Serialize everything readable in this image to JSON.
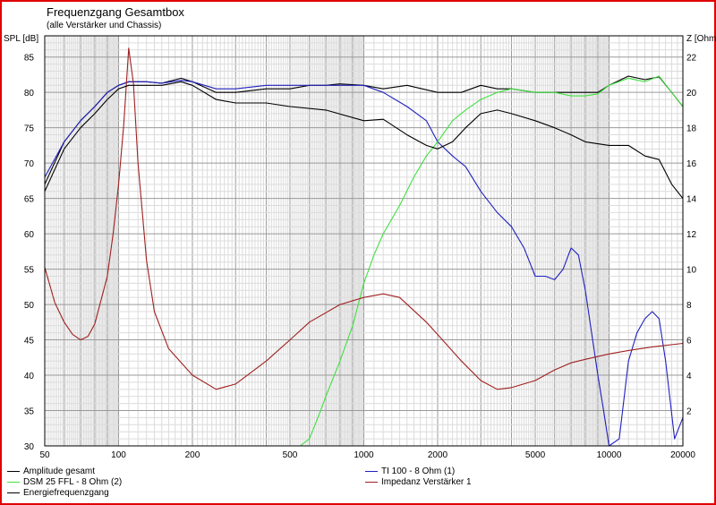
{
  "window": {
    "frame_color": "#e00000"
  },
  "chart_data": {
    "type": "line",
    "title": "Frequenzgang Gesamtbox",
    "subtitle": "(alle Verstärker und Chassis)",
    "xlabel": "",
    "ylabel": "SPL [dB]",
    "ylabel_right": "Z [Ohm]",
    "x_scale": "log",
    "xlim": [
      50,
      20000
    ],
    "ylim": [
      30,
      88
    ],
    "ylim_right": [
      0,
      23.2
    ],
    "grid": true,
    "x_ticks": [
      50,
      100,
      200,
      500,
      1000,
      2000,
      5000,
      10000,
      20000
    ],
    "x_tick_labels": [
      "50",
      "100",
      "200",
      "500",
      "1000",
      "2000",
      "5000",
      "10000",
      "20000"
    ],
    "y_ticks": [
      30,
      35,
      40,
      45,
      50,
      55,
      60,
      65,
      70,
      75,
      80,
      85
    ],
    "y_tick_labels": [
      "30",
      "35",
      "40",
      "45",
      "50",
      "55",
      "60",
      "65",
      "70",
      "75",
      "80",
      "85"
    ],
    "y_ticks_right": [
      2,
      4,
      6,
      8,
      10,
      12,
      14,
      16,
      18,
      20,
      22
    ],
    "y_tick_labels_right": [
      "2",
      "4",
      "6",
      "8",
      "10",
      "12",
      "14",
      "16",
      "18",
      "20",
      "22"
    ],
    "legend_position": "bottom",
    "series": [
      {
        "name": "Amplitude gesamt",
        "color": "#000000",
        "axis": "left",
        "points": [
          [
            50,
            67
          ],
          [
            60,
            73
          ],
          [
            70,
            76
          ],
          [
            80,
            78
          ],
          [
            90,
            80
          ],
          [
            100,
            81
          ],
          [
            110,
            81.5
          ],
          [
            130,
            81.5
          ],
          [
            150,
            81.3
          ],
          [
            180,
            82
          ],
          [
            200,
            81.5
          ],
          [
            250,
            80
          ],
          [
            300,
            80
          ],
          [
            400,
            80.5
          ],
          [
            500,
            80.5
          ],
          [
            600,
            81
          ],
          [
            700,
            81
          ],
          [
            800,
            81.2
          ],
          [
            1000,
            81
          ],
          [
            1200,
            80.5
          ],
          [
            1500,
            81
          ],
          [
            2000,
            80
          ],
          [
            2500,
            80
          ],
          [
            3000,
            81
          ],
          [
            3500,
            80.5
          ],
          [
            4000,
            80.5
          ],
          [
            5000,
            80
          ],
          [
            6000,
            80
          ],
          [
            7000,
            80
          ],
          [
            8000,
            80
          ],
          [
            9000,
            80
          ],
          [
            10000,
            81
          ],
          [
            12000,
            82.3
          ],
          [
            14000,
            81.8
          ],
          [
            16000,
            82.2
          ],
          [
            18000,
            80
          ],
          [
            20000,
            78
          ]
        ]
      },
      {
        "name": "TI 100 - 8 Ohm (1)",
        "color": "#2020c0",
        "axis": "left",
        "points": [
          [
            50,
            68
          ],
          [
            60,
            73
          ],
          [
            70,
            76
          ],
          [
            80,
            78
          ],
          [
            90,
            80
          ],
          [
            100,
            81
          ],
          [
            110,
            81.5
          ],
          [
            130,
            81.5
          ],
          [
            150,
            81.3
          ],
          [
            180,
            81.7
          ],
          [
            200,
            81.5
          ],
          [
            250,
            80.5
          ],
          [
            300,
            80.5
          ],
          [
            400,
            81
          ],
          [
            500,
            81
          ],
          [
            700,
            81
          ],
          [
            1000,
            81
          ],
          [
            1200,
            80
          ],
          [
            1500,
            78
          ],
          [
            1800,
            76
          ],
          [
            2000,
            73
          ],
          [
            2300,
            71
          ],
          [
            2600,
            69.5
          ],
          [
            3000,
            66
          ],
          [
            3500,
            63
          ],
          [
            4000,
            61
          ],
          [
            4500,
            58
          ],
          [
            5000,
            54
          ],
          [
            5500,
            54
          ],
          [
            6000,
            53.5
          ],
          [
            6500,
            55
          ],
          [
            7000,
            58
          ],
          [
            7500,
            57
          ],
          [
            8000,
            52
          ],
          [
            9000,
            40
          ],
          [
            9500,
            35
          ],
          [
            10000,
            30
          ],
          [
            11000,
            31
          ],
          [
            12000,
            42
          ],
          [
            13000,
            46
          ],
          [
            14000,
            48
          ],
          [
            15000,
            49
          ],
          [
            16000,
            48
          ],
          [
            17000,
            42
          ],
          [
            18500,
            31
          ],
          [
            20000,
            34
          ]
        ]
      },
      {
        "name": "DSM 25 FFL - 8 Ohm (2)",
        "color": "#40e040",
        "axis": "left",
        "points": [
          [
            50,
            30
          ],
          [
            550,
            30
          ],
          [
            600,
            31
          ],
          [
            650,
            34
          ],
          [
            700,
            37
          ],
          [
            800,
            42
          ],
          [
            900,
            47
          ],
          [
            1000,
            53
          ],
          [
            1100,
            57
          ],
          [
            1200,
            60
          ],
          [
            1400,
            64
          ],
          [
            1600,
            68
          ],
          [
            1800,
            71
          ],
          [
            2000,
            73
          ],
          [
            2300,
            76
          ],
          [
            2600,
            77.5
          ],
          [
            3000,
            79
          ],
          [
            3500,
            80
          ],
          [
            4000,
            80.5
          ],
          [
            5000,
            80
          ],
          [
            6000,
            80
          ],
          [
            7000,
            79.5
          ],
          [
            8000,
            79.5
          ],
          [
            9000,
            79.8
          ],
          [
            10000,
            81
          ],
          [
            12000,
            82
          ],
          [
            14000,
            81.5
          ],
          [
            16000,
            82.3
          ],
          [
            18000,
            80
          ],
          [
            20000,
            78
          ]
        ]
      },
      {
        "name": "Impedanz Verstärker 1",
        "color": "#a02020",
        "axis": "right",
        "points": [
          [
            50,
            10.1
          ],
          [
            55,
            8.1
          ],
          [
            60,
            7
          ],
          [
            65,
            6.3
          ],
          [
            70,
            6
          ],
          [
            75,
            6.2
          ],
          [
            80,
            6.9
          ],
          [
            90,
            9.6
          ],
          [
            95,
            12
          ],
          [
            100,
            14.8
          ],
          [
            105,
            18.2
          ],
          [
            110,
            22.5
          ],
          [
            115,
            20.5
          ],
          [
            120,
            16
          ],
          [
            130,
            10.5
          ],
          [
            140,
            7.6
          ],
          [
            160,
            5.5
          ],
          [
            200,
            4
          ],
          [
            250,
            3.2
          ],
          [
            300,
            3.5
          ],
          [
            400,
            4.8
          ],
          [
            500,
            6
          ],
          [
            600,
            7
          ],
          [
            800,
            8
          ],
          [
            1000,
            8.4
          ],
          [
            1200,
            8.6
          ],
          [
            1400,
            8.4
          ],
          [
            1800,
            7
          ],
          [
            2000,
            6.3
          ],
          [
            2500,
            4.8
          ],
          [
            3000,
            3.7
          ],
          [
            3500,
            3.2
          ],
          [
            4000,
            3.3
          ],
          [
            5000,
            3.7
          ],
          [
            6000,
            4.3
          ],
          [
            7000,
            4.7
          ],
          [
            8000,
            4.9
          ],
          [
            10000,
            5.2
          ],
          [
            12000,
            5.4
          ],
          [
            15000,
            5.6
          ],
          [
            20000,
            5.8
          ]
        ]
      },
      {
        "name": "Energiefrequenzgang",
        "color": "#000000",
        "axis": "left",
        "points": [
          [
            50,
            66
          ],
          [
            60,
            72
          ],
          [
            70,
            75
          ],
          [
            80,
            77
          ],
          [
            90,
            79
          ],
          [
            100,
            80.5
          ],
          [
            110,
            81
          ],
          [
            130,
            81
          ],
          [
            150,
            81
          ],
          [
            180,
            81.5
          ],
          [
            200,
            81
          ],
          [
            250,
            79
          ],
          [
            300,
            78.5
          ],
          [
            400,
            78.5
          ],
          [
            500,
            78
          ],
          [
            700,
            77.5
          ],
          [
            1000,
            76
          ],
          [
            1200,
            76.2
          ],
          [
            1500,
            74
          ],
          [
            1800,
            72.5
          ],
          [
            2000,
            72
          ],
          [
            2300,
            73
          ],
          [
            2600,
            75
          ],
          [
            3000,
            77
          ],
          [
            3500,
            77.5
          ],
          [
            4000,
            77
          ],
          [
            5000,
            76
          ],
          [
            6000,
            75
          ],
          [
            7000,
            74
          ],
          [
            8000,
            73
          ],
          [
            10000,
            72.5
          ],
          [
            12000,
            72.5
          ],
          [
            14000,
            71
          ],
          [
            16000,
            70.5
          ],
          [
            18000,
            67
          ],
          [
            20000,
            65
          ]
        ]
      }
    ]
  }
}
